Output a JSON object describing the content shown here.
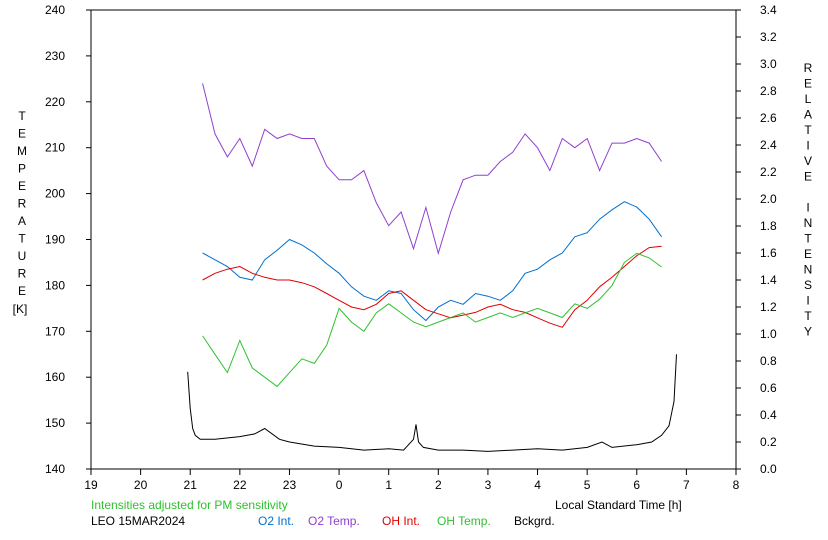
{
  "chart_data": {
    "type": "line",
    "title": "",
    "xlabel": "Local Standard Time [h]",
    "ylabel_left": "TEMPERATURE",
    "ylabel_left_unit": "[K]",
    "ylabel_right": "RELATIVE INTENSITY",
    "x_ticks": [
      "19",
      "20",
      "21",
      "22",
      "23",
      "0",
      "1",
      "2",
      "3",
      "4",
      "5",
      "6",
      "7",
      "8"
    ],
    "xlim": [
      19,
      32
    ],
    "ylim_left": [
      140,
      240
    ],
    "y_ticks_left": [
      "140",
      "150",
      "160",
      "170",
      "180",
      "190",
      "200",
      "210",
      "220",
      "230",
      "240"
    ],
    "ylim_right": [
      0.0,
      3.4
    ],
    "y_ticks_right": [
      "0.0",
      "0.2",
      "0.4",
      "0.6",
      "0.8",
      "1.0",
      "1.2",
      "1.4",
      "1.6",
      "1.8",
      "2.0",
      "2.2",
      "2.4",
      "2.6",
      "2.8",
      "3.0",
      "3.2",
      "3.4"
    ],
    "grid": false,
    "note": "Intensities adjusted for PM sensitivity",
    "station_date": "LEO 15MAR2024",
    "series": [
      {
        "name": "O2 Int.",
        "color": "#0070d0",
        "axis": "right",
        "x": [
          21.25,
          21.5,
          21.75,
          22.0,
          22.25,
          22.5,
          22.75,
          23.0,
          23.25,
          23.5,
          23.75,
          24.0,
          24.25,
          24.5,
          24.75,
          25.0,
          25.25,
          25.5,
          25.75,
          26.0,
          26.25,
          26.5,
          26.75,
          27.0,
          27.25,
          27.5,
          27.75,
          28.0,
          28.25,
          28.5,
          28.75,
          29.0,
          29.25,
          29.5,
          29.75,
          30.0,
          30.25,
          30.5
        ],
        "y": [
          1.6,
          1.55,
          1.5,
          1.42,
          1.4,
          1.55,
          1.62,
          1.7,
          1.66,
          1.6,
          1.52,
          1.45,
          1.35,
          1.28,
          1.25,
          1.32,
          1.3,
          1.18,
          1.1,
          1.2,
          1.25,
          1.22,
          1.3,
          1.28,
          1.25,
          1.32,
          1.45,
          1.48,
          1.55,
          1.6,
          1.72,
          1.75,
          1.85,
          1.92,
          1.98,
          1.94,
          1.85,
          1.72
        ]
      },
      {
        "name": "O2 Temp.",
        "color": "#9040d0",
        "axis": "left",
        "x": [
          21.25,
          21.5,
          21.75,
          22.0,
          22.25,
          22.5,
          22.75,
          23.0,
          23.25,
          23.5,
          23.75,
          24.0,
          24.25,
          24.5,
          24.75,
          25.0,
          25.25,
          25.5,
          25.75,
          26.0,
          26.25,
          26.5,
          26.75,
          27.0,
          27.25,
          27.5,
          27.75,
          28.0,
          28.25,
          28.5,
          28.75,
          29.0,
          29.25,
          29.5,
          29.75,
          30.0,
          30.25,
          30.5
        ],
        "y": [
          224,
          213,
          208,
          212,
          206,
          214,
          212,
          213,
          212,
          212,
          206,
          203,
          203,
          205,
          198,
          193,
          196,
          188,
          197,
          187,
          196,
          203,
          204,
          204,
          207,
          209,
          213,
          210,
          205,
          212,
          210,
          212,
          205,
          211,
          211,
          212,
          211,
          207
        ]
      },
      {
        "name": "OH Int.",
        "color": "#e00000",
        "axis": "right",
        "x": [
          21.25,
          21.5,
          21.75,
          22.0,
          22.25,
          22.5,
          22.75,
          23.0,
          23.25,
          23.5,
          23.75,
          24.0,
          24.25,
          24.5,
          24.75,
          25.0,
          25.25,
          25.5,
          25.75,
          26.0,
          26.25,
          26.5,
          26.75,
          27.0,
          27.25,
          27.5,
          27.75,
          28.0,
          28.25,
          28.5,
          28.75,
          29.0,
          29.25,
          29.5,
          29.75,
          30.0,
          30.25,
          30.5
        ],
        "y": [
          1.4,
          1.45,
          1.48,
          1.5,
          1.45,
          1.42,
          1.4,
          1.4,
          1.38,
          1.35,
          1.3,
          1.25,
          1.2,
          1.18,
          1.22,
          1.3,
          1.32,
          1.25,
          1.18,
          1.15,
          1.12,
          1.14,
          1.16,
          1.2,
          1.22,
          1.18,
          1.16,
          1.12,
          1.08,
          1.05,
          1.18,
          1.25,
          1.35,
          1.42,
          1.5,
          1.58,
          1.64,
          1.65
        ]
      },
      {
        "name": "OH Temp.",
        "color": "#30c030",
        "axis": "left",
        "x": [
          21.25,
          21.5,
          21.75,
          22.0,
          22.25,
          22.5,
          22.75,
          23.0,
          23.25,
          23.5,
          23.75,
          24.0,
          24.25,
          24.5,
          24.75,
          25.0,
          25.25,
          25.5,
          25.75,
          26.0,
          26.25,
          26.5,
          26.75,
          27.0,
          27.25,
          27.5,
          27.75,
          28.0,
          28.25,
          28.5,
          28.75,
          29.0,
          29.25,
          29.5,
          29.75,
          30.0,
          30.25,
          30.5
        ],
        "y": [
          169,
          165,
          161,
          168,
          162,
          160,
          158,
          161,
          164,
          163,
          167,
          175,
          172,
          170,
          174,
          176,
          174,
          172,
          171,
          172,
          173,
          174,
          172,
          173,
          174,
          173,
          174,
          175,
          174,
          173,
          176,
          175,
          177,
          180,
          185,
          187,
          186,
          184
        ]
      },
      {
        "name": "Bckgrd.",
        "color": "#000000",
        "axis": "right",
        "x": [
          20.95,
          21.0,
          21.05,
          21.1,
          21.2,
          21.5,
          22.0,
          22.3,
          22.5,
          22.8,
          23.0,
          23.5,
          24.0,
          24.5,
          25.0,
          25.3,
          25.5,
          25.55,
          25.6,
          25.7,
          26.0,
          26.5,
          27.0,
          27.5,
          28.0,
          28.5,
          29.0,
          29.3,
          29.5,
          30.0,
          30.3,
          30.5,
          30.65,
          30.75,
          30.8
        ],
        "y": [
          0.72,
          0.45,
          0.3,
          0.25,
          0.22,
          0.22,
          0.24,
          0.26,
          0.3,
          0.22,
          0.2,
          0.17,
          0.16,
          0.14,
          0.15,
          0.14,
          0.22,
          0.33,
          0.2,
          0.16,
          0.14,
          0.14,
          0.13,
          0.14,
          0.15,
          0.14,
          0.16,
          0.2,
          0.16,
          0.18,
          0.2,
          0.25,
          0.32,
          0.5,
          0.85
        ]
      }
    ]
  }
}
